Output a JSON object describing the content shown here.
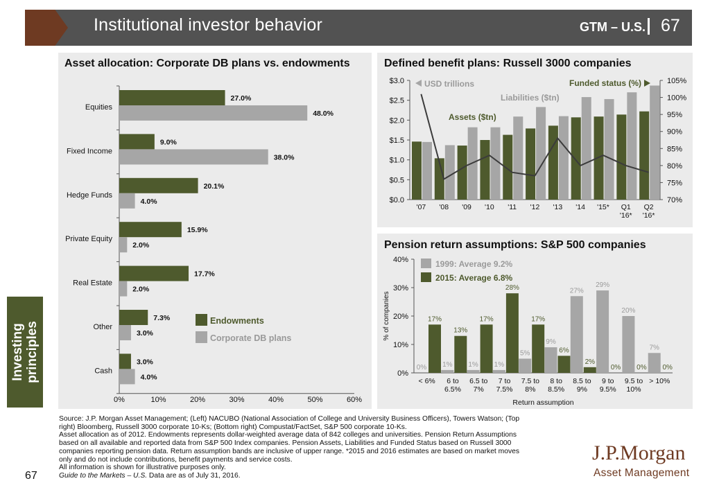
{
  "header": {
    "title": "Institutional investor behavior",
    "section": "GTM – U.S.",
    "page_number": "67"
  },
  "sidebar": {
    "label_line1": "Investing",
    "label_line2": "principles"
  },
  "footer": {
    "page_number": "67",
    "source_lines": [
      "Source: J.P. Morgan Asset Management; (Left) NACUBO (National Association of College and University Business Officers), Towers Watson; (Top",
      "right) Bloomberg, Russell 3000 corporate 10-Ks; (Bottom right) Compustat/FactSet, S&P 500 corporate 10-Ks.",
      "Asset allocation as of 2012. Endowments represents dollar-weighted average data of 842 colleges and universities. Pension Return Assumptions",
      "based on all available and reported data from S&P 500 Index companies. Pension Assets, Liabilities and Funded Status based on Russell 3000",
      "companies reporting pension data. Return assumption bands are inclusive of upper range. *2015 and 2016 estimates are based on market moves",
      "only and do not include contributions, benefit payments and service costs.",
      "All information is shown for illustrative purposes only."
    ],
    "guide_italic": "Guide to the Markets – U.S.",
    "guide_rest": " Data are as of July 31, 2016.",
    "logo_line1": "J.P.Morgan",
    "logo_line2": "Asset Management"
  },
  "colors": {
    "green": "#4e5a2d",
    "gray": "#a6a6a6",
    "line": "#3b3b3b",
    "brand_brown": "#6e3a22",
    "header_gray": "#525252"
  },
  "chart_data": [
    {
      "type": "bar",
      "orientation": "horizontal",
      "title": "Asset allocation: Corporate DB plans vs. endowments",
      "categories": [
        "Equities",
        "Fixed Income",
        "Hedge Funds",
        "Private Equity",
        "Real Estate",
        "Other",
        "Cash"
      ],
      "series": [
        {
          "name": "Endowments",
          "values": [
            27.0,
            9.0,
            20.1,
            15.9,
            17.7,
            7.3,
            3.0
          ],
          "labels": [
            "27.0%",
            "9.0%",
            "20.1%",
            "15.9%",
            "17.7%",
            "7.3%",
            "3.0%"
          ],
          "color": "#4e5a2d"
        },
        {
          "name": "Corporate DB plans",
          "values": [
            48.0,
            38.0,
            4.0,
            2.0,
            2.0,
            3.0,
            4.0
          ],
          "labels": [
            "48.0%",
            "38.0%",
            "4.0%",
            "2.0%",
            "2.0%",
            "3.0%",
            "4.0%"
          ],
          "color": "#a6a6a6"
        }
      ],
      "xlim": [
        0,
        60
      ],
      "xticks": [
        "0%",
        "10%",
        "20%",
        "30%",
        "40%",
        "50%",
        "60%"
      ],
      "legend": "right"
    },
    {
      "type": "bar",
      "title": "Defined benefit plans: Russell 3000 companies",
      "categories": [
        "'07",
        "'08",
        "'09",
        "'10",
        "'11",
        "'12",
        "'13",
        "'14",
        "'15*",
        "Q1 '16*",
        "Q2 '16*"
      ],
      "category_lines": [
        [
          "'07"
        ],
        [
          "'08"
        ],
        [
          "'09"
        ],
        [
          "'10"
        ],
        [
          "'11"
        ],
        [
          "'12"
        ],
        [
          "'13"
        ],
        [
          "'14"
        ],
        [
          "'15*"
        ],
        [
          "Q1",
          "'16*"
        ],
        [
          "Q2",
          "'16*"
        ]
      ],
      "series": [
        {
          "name": "Assets ($tn)",
          "type": "bar",
          "values": [
            1.46,
            1.04,
            1.36,
            1.5,
            1.63,
            1.79,
            1.86,
            2.07,
            2.09,
            2.14,
            2.22
          ],
          "color": "#4e5a2d"
        },
        {
          "name": "Liabilities ($tn)",
          "type": "bar",
          "values": [
            1.45,
            1.37,
            1.82,
            1.82,
            2.09,
            2.33,
            2.1,
            2.58,
            2.53,
            2.7,
            2.87
          ],
          "color": "#a6a6a6"
        },
        {
          "name": "Funded status (%)",
          "type": "line",
          "axis": "right",
          "values": [
            101,
            76,
            80,
            83,
            78,
            77,
            88,
            80,
            83,
            80,
            78
          ],
          "color": "#3b3b3b"
        }
      ],
      "ylim": [
        0,
        3.0
      ],
      "yticks": [
        "$0.0",
        "$0.5",
        "$1.0",
        "$1.5",
        "$2.0",
        "$2.5",
        "$3.0"
      ],
      "y2lim": [
        70,
        105
      ],
      "y2ticks": [
        "70%",
        "75%",
        "80%",
        "85%",
        "90%",
        "95%",
        "100%",
        "105%"
      ],
      "axis_notes": {
        "left": "USD trillions",
        "right": "Funded status (%)"
      }
    },
    {
      "type": "bar",
      "title": "Pension return assumptions: S&P 500 companies",
      "xlabel": "Return assumption",
      "ylabel": "% of companies",
      "categories": [
        "< 6%",
        "6 to 6.5%",
        "6.5 to 7%",
        "7 to 7.5%",
        "7.5 to 8%",
        "8 to 8.5%",
        "8.5 to 9%",
        "9 to 9.5%",
        "9.5 to 10%",
        "> 10%"
      ],
      "category_lines": [
        [
          "< 6%"
        ],
        [
          "6 to",
          "6.5%"
        ],
        [
          "6.5 to",
          "7%"
        ],
        [
          "7 to",
          "7.5%"
        ],
        [
          "7.5 to",
          "8%"
        ],
        [
          "8 to",
          "8.5%"
        ],
        [
          "8.5 to",
          "9%"
        ],
        [
          "9 to",
          "9.5%"
        ],
        [
          "9.5 to",
          "10%"
        ],
        [
          "> 10%"
        ]
      ],
      "series": [
        {
          "name": "1999: Average 9.2%",
          "values": [
            0,
            1,
            1,
            1,
            5,
            9,
            27,
            29,
            20,
            7
          ],
          "labels": [
            "0%",
            "1%",
            "1%",
            "1%",
            "5%",
            "9%",
            "27%",
            "29%",
            "20%",
            "7%"
          ],
          "color": "#a6a6a6"
        },
        {
          "name": "2015: Average 6.8%",
          "values": [
            17,
            13,
            17,
            28,
            17,
            6,
            2,
            0,
            0,
            0
          ],
          "labels": [
            "17%",
            "13%",
            "17%",
            "28%",
            "17%",
            "6%",
            "2%",
            "0%",
            "0%",
            "0%"
          ],
          "color": "#4e5a2d"
        }
      ],
      "ylim": [
        0,
        40
      ],
      "yticks": [
        "0%",
        "10%",
        "20%",
        "30%",
        "40%"
      ],
      "legend": "top-left"
    }
  ]
}
